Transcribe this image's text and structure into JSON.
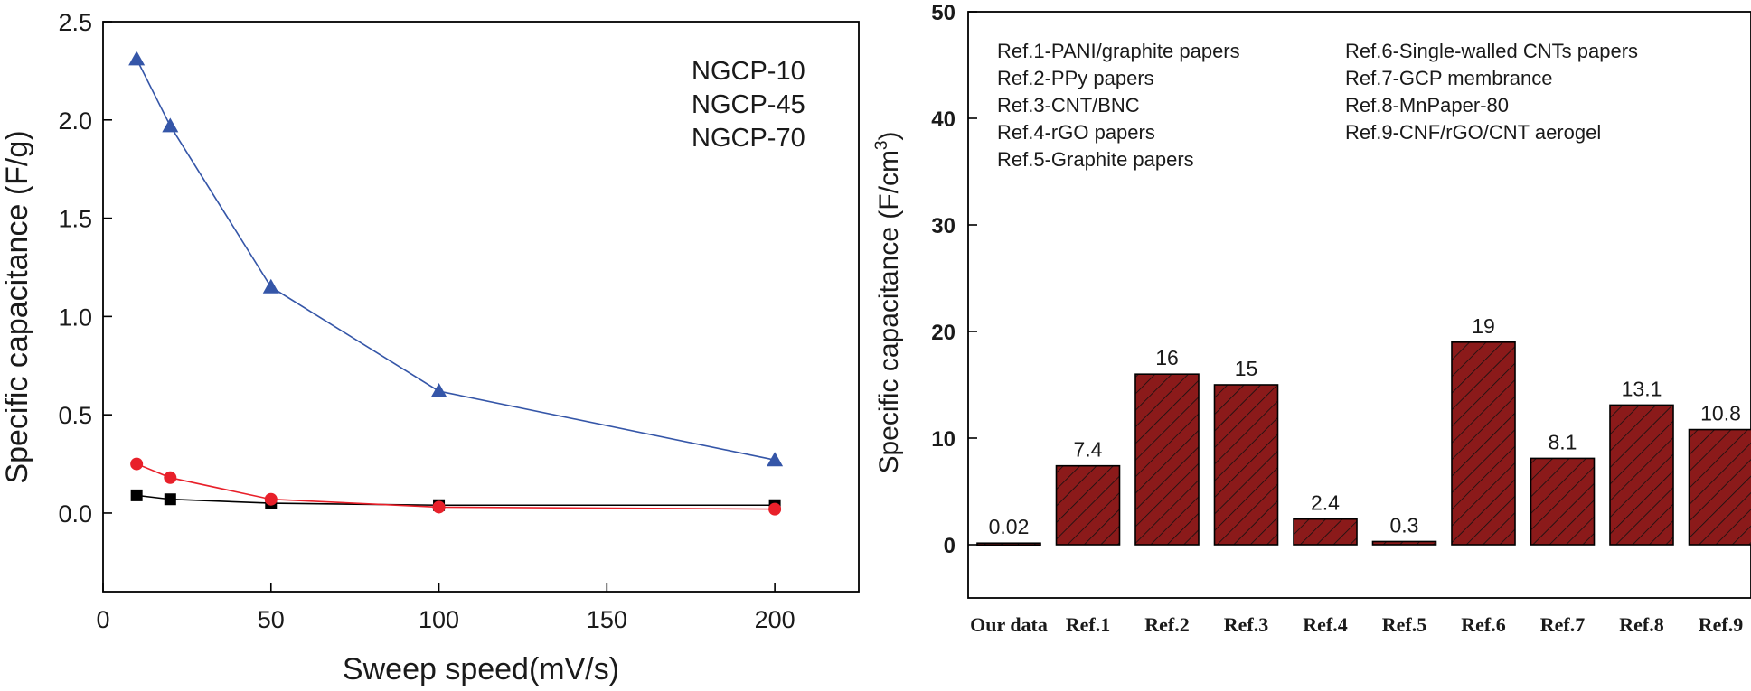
{
  "chart_data": [
    {
      "type": "line",
      "xlabel": "Sweep speed(mV/s)",
      "ylabel": "Specific capacitance (F/g)",
      "xlim": [
        0,
        225
      ],
      "ylim": [
        -0.4,
        2.5
      ],
      "xticks": [
        "0",
        "50",
        "100",
        "150",
        "200"
      ],
      "xtick_values": [
        0,
        50,
        100,
        150,
        200
      ],
      "yticks": [
        "0.0",
        "0.5",
        "1.0",
        "1.5",
        "2.0",
        "2.5"
      ],
      "ytick_values": [
        0,
        0.5,
        1.0,
        1.5,
        2.0,
        2.5
      ],
      "grid": false,
      "legend_position": "top-right",
      "legend_labels": [
        "NGCP-10",
        "NGCP-45",
        "NGCP-70"
      ],
      "series": [
        {
          "color": "#000000",
          "marker": "square",
          "x": [
            10,
            20,
            50,
            100,
            200
          ],
          "y": [
            0.09,
            0.07,
            0.05,
            0.04,
            0.04
          ]
        },
        {
          "color": "#e8202a",
          "marker": "circle",
          "x": [
            10,
            20,
            50,
            100,
            200
          ],
          "y": [
            0.25,
            0.18,
            0.07,
            0.03,
            0.02
          ]
        },
        {
          "color": "#3556a8",
          "marker": "triangle",
          "x": [
            10,
            20,
            50,
            100,
            200
          ],
          "y": [
            2.31,
            1.97,
            1.15,
            0.62,
            0.27
          ]
        }
      ]
    },
    {
      "type": "bar",
      "ylabel_main": "Specific capacitance (F/cm",
      "ylabel_sup": "3",
      "ylabel_tail": ")",
      "ylim": [
        -5,
        50
      ],
      "yticks": [
        "0",
        "10",
        "20",
        "30",
        "40",
        "50"
      ],
      "ytick_values": [
        0,
        10,
        20,
        30,
        40,
        50
      ],
      "grid": false,
      "bar_color": "#8b1a1a",
      "hatch": "diagonal",
      "categories": [
        "Our data",
        "Ref.1",
        "Ref.2",
        "Ref.3",
        "Ref.4",
        "Ref.5",
        "Ref.6",
        "Ref.7",
        "Ref.8",
        "Ref.9"
      ],
      "values": [
        0.02,
        7.4,
        16,
        15,
        2.4,
        0.3,
        19,
        8.1,
        13.1,
        10.8
      ],
      "data_labels": [
        "0.02",
        "7.4",
        "16",
        "15",
        "2.4",
        "0.3",
        "19",
        "8.1",
        "13.1",
        "10.8"
      ],
      "annotations_left": [
        {
          "ref": "Ref.1",
          "text": "-PANI/graphite papers"
        },
        {
          "ref": "Ref.2",
          "text": "-PPy papers"
        },
        {
          "ref": "Ref.3",
          "text": "-CNT/BNC"
        },
        {
          "ref": "Ref.4",
          "text": "-rGO papers"
        },
        {
          "ref": "Ref.5",
          "text": "-Graphite papers"
        }
      ],
      "annotations_right": [
        {
          "ref": "Ref.6",
          "text": "-Single-walled CNTs papers"
        },
        {
          "ref": "Ref.7",
          "text": "-GCP membrance"
        },
        {
          "ref": "Ref.8",
          "text": "-MnPaper-80"
        },
        {
          "ref": "Ref.9",
          "text": "-CNF/rGO/CNT aerogel"
        }
      ]
    }
  ]
}
